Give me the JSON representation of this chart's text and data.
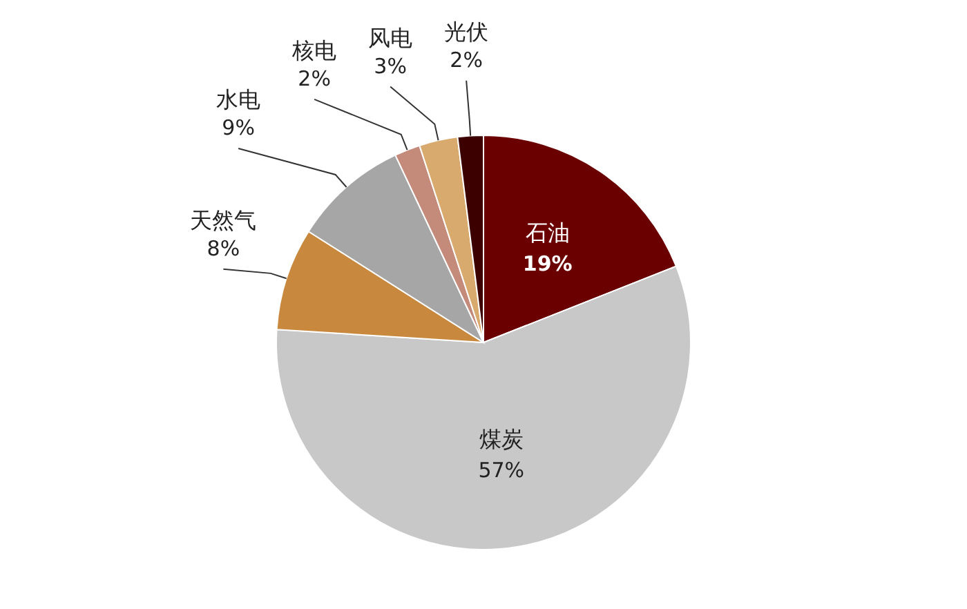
{
  "chart_data": {
    "type": "pie",
    "categories": [
      "石油",
      "煤炭",
      "天然气",
      "水电",
      "核电",
      "风电",
      "光伏"
    ],
    "values": [
      19,
      57,
      8,
      9,
      2,
      3,
      2
    ],
    "colors": [
      "#6b0000",
      "#c8c8c8",
      "#c8893e",
      "#a6a6a6",
      "#c48a7a",
      "#d9aa6e",
      "#3d0000"
    ],
    "value_labels": [
      "19%",
      "57%",
      "8%",
      "9%",
      "2%",
      "3%",
      "2%"
    ]
  }
}
